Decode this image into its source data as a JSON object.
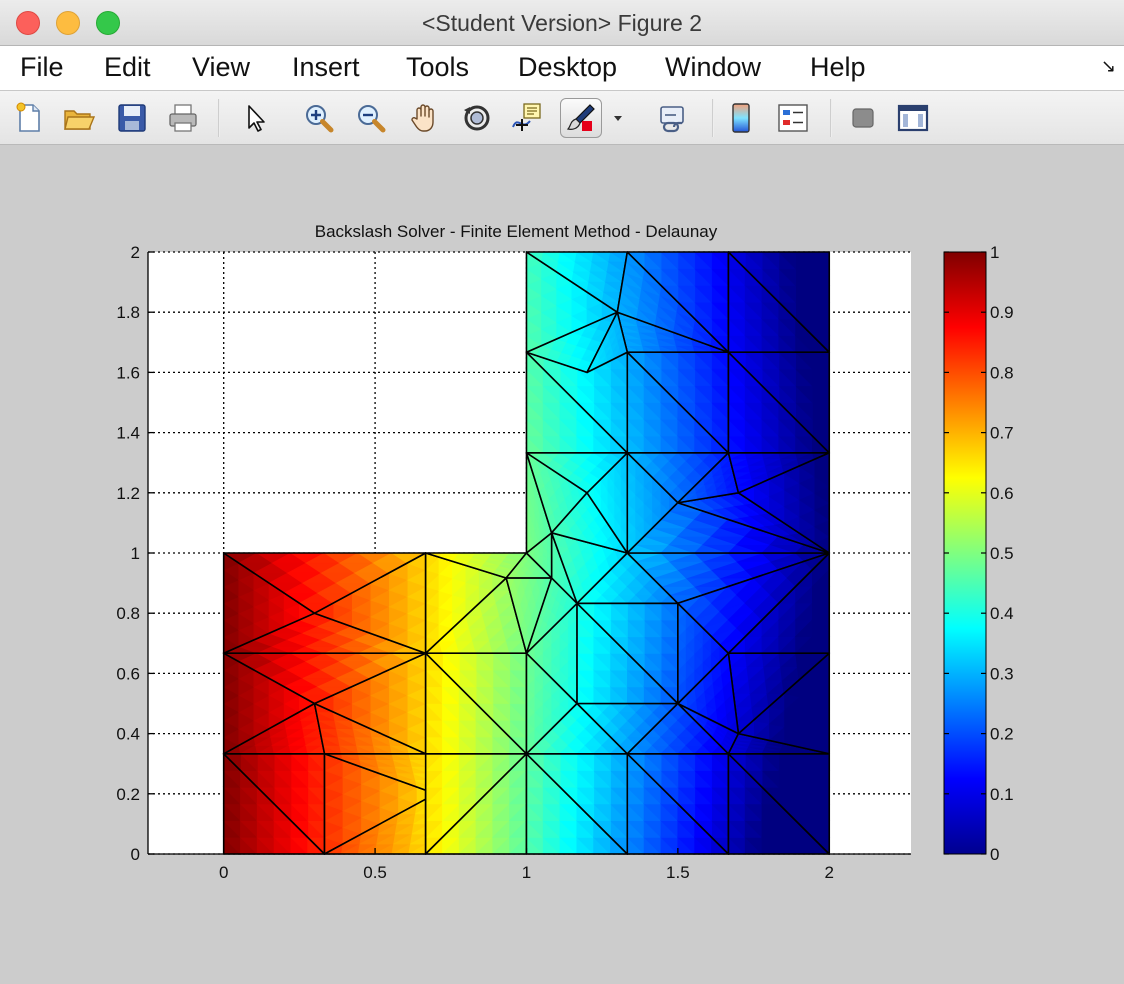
{
  "window": {
    "title": "<Student Version> Figure 2"
  },
  "menu": {
    "items": [
      "File",
      "Edit",
      "View",
      "Insert",
      "Tools",
      "Desktop",
      "Window",
      "Help"
    ]
  },
  "toolbar": {
    "icons": [
      "new-figure-icon",
      "open-file-icon",
      "save-icon",
      "print-icon",
      "edit-plot-arrow-icon",
      "zoom-in-icon",
      "zoom-out-icon",
      "pan-hand-icon",
      "rotate-3d-icon",
      "data-cursor-icon",
      "brush-icon",
      "brush-dropdown-icon",
      "link-plot-icon",
      "colorbar-icon",
      "legend-icon",
      "hide-plot-tools-icon",
      "show-plot-tools-icon"
    ]
  },
  "colors": {
    "axes_background": "#ffffff",
    "figure_background": "#cccccc",
    "mesh_edges": "#000000",
    "colormap": "jet"
  },
  "chart_data": {
    "type": "heatmap",
    "title": "Backslash Solver - Finite Element Method - Delaunay",
    "xlabel": "",
    "ylabel": "",
    "xlim": [
      -0.25,
      2.27
    ],
    "ylim": [
      0,
      2
    ],
    "xticks": [
      "0",
      "0.5",
      "1",
      "1.5",
      "2"
    ],
    "yticks": [
      "0",
      "0.2",
      "0.4",
      "0.6",
      "0.8",
      "1",
      "1.2",
      "1.4",
      "1.6",
      "1.8",
      "2"
    ],
    "grid": true,
    "domain": "L-shaped: [0,2]x[0,1] union [1,2]x[1,2]",
    "colorbar": {
      "location": "right",
      "range": [
        0,
        1
      ],
      "ticks": [
        "0",
        "0.1",
        "0.2",
        "0.3",
        "0.4",
        "0.5",
        "0.6",
        "0.7",
        "0.8",
        "0.9",
        "1"
      ]
    },
    "mesh_nodes": [
      [
        0,
        0
      ],
      [
        0.333,
        0
      ],
      [
        0.667,
        0
      ],
      [
        1,
        0
      ],
      [
        1.333,
        0
      ],
      [
        1.667,
        0
      ],
      [
        2,
        0
      ],
      [
        0,
        0.333
      ],
      [
        0.333,
        0.333
      ],
      [
        0.667,
        0.333
      ],
      [
        1,
        0.333
      ],
      [
        1.333,
        0.333
      ],
      [
        1.667,
        0.333
      ],
      [
        2,
        0.333
      ],
      [
        0,
        0.667
      ],
      [
        0.667,
        0.667
      ],
      [
        1,
        0.667
      ],
      [
        1.333,
        0.667
      ],
      [
        1.667,
        0.667
      ],
      [
        2,
        0.667
      ],
      [
        0,
        1
      ],
      [
        0.667,
        1
      ],
      [
        1,
        1
      ],
      [
        2,
        1
      ],
      [
        1,
        1.333
      ],
      [
        1.333,
        1.333
      ],
      [
        1.667,
        1.333
      ],
      [
        2,
        1.333
      ],
      [
        1,
        1.667
      ],
      [
        1.333,
        1.667
      ],
      [
        1.667,
        1.667
      ],
      [
        2,
        1.667
      ],
      [
        1,
        2
      ],
      [
        1.333,
        2
      ],
      [
        1.667,
        2
      ],
      [
        2,
        2
      ],
      [
        0.7,
        0.2
      ],
      [
        0.3,
        0.5
      ],
      [
        0.3,
        0.8
      ],
      [
        1.167,
        0.5
      ],
      [
        1.5,
        0.5
      ],
      [
        1.7,
        0.4
      ],
      [
        1.167,
        0.833
      ],
      [
        1.5,
        0.833
      ],
      [
        0.933,
        0.917
      ],
      [
        1.083,
        0.917
      ],
      [
        1.083,
        1.067
      ],
      [
        1.333,
        1
      ],
      [
        1.5,
        1.167
      ],
      [
        1.7,
        1.2
      ],
      [
        1.2,
        1.2
      ],
      [
        1.2,
        1.6
      ],
      [
        1.3,
        1.8
      ]
    ],
    "mesh_triangles": [
      [
        0,
        1,
        7
      ],
      [
        1,
        8,
        7
      ],
      [
        1,
        36,
        8
      ],
      [
        1,
        2,
        36
      ],
      [
        2,
        9,
        36
      ],
      [
        8,
        36,
        9
      ],
      [
        2,
        10,
        9
      ],
      [
        2,
        3,
        10
      ],
      [
        3,
        4,
        10
      ],
      [
        4,
        11,
        10
      ],
      [
        4,
        5,
        11
      ],
      [
        5,
        12,
        11
      ],
      [
        5,
        6,
        12
      ],
      [
        6,
        13,
        12
      ],
      [
        7,
        8,
        37
      ],
      [
        8,
        9,
        37
      ],
      [
        9,
        15,
        37
      ],
      [
        7,
        37,
        14
      ],
      [
        14,
        37,
        15
      ],
      [
        9,
        10,
        15
      ],
      [
        10,
        16,
        15
      ],
      [
        10,
        39,
        16
      ],
      [
        10,
        11,
        39
      ],
      [
        11,
        40,
        39
      ],
      [
        11,
        12,
        40
      ],
      [
        12,
        41,
        40
      ],
      [
        12,
        13,
        41
      ],
      [
        13,
        19,
        41
      ],
      [
        41,
        19,
        18
      ],
      [
        40,
        41,
        18
      ],
      [
        14,
        15,
        38
      ],
      [
        15,
        21,
        38
      ],
      [
        14,
        38,
        20
      ],
      [
        20,
        38,
        21
      ],
      [
        15,
        16,
        44
      ],
      [
        15,
        44,
        21
      ],
      [
        16,
        45,
        44
      ],
      [
        21,
        44,
        22
      ],
      [
        22,
        44,
        45
      ],
      [
        16,
        39,
        42
      ],
      [
        16,
        42,
        45
      ],
      [
        39,
        40,
        42
      ],
      [
        40,
        43,
        42
      ],
      [
        40,
        18,
        43
      ],
      [
        18,
        19,
        23
      ],
      [
        18,
        23,
        43
      ],
      [
        45,
        42,
        46
      ],
      [
        22,
        45,
        46
      ],
      [
        42,
        47,
        46
      ],
      [
        42,
        43,
        47
      ],
      [
        43,
        23,
        47
      ],
      [
        43,
        18,
        23
      ],
      [
        22,
        46,
        24
      ],
      [
        24,
        46,
        50
      ],
      [
        46,
        47,
        50
      ],
      [
        47,
        25,
        50
      ],
      [
        24,
        50,
        25
      ],
      [
        47,
        48,
        25
      ],
      [
        47,
        23,
        48
      ],
      [
        23,
        49,
        48
      ],
      [
        23,
        27,
        49
      ],
      [
        25,
        48,
        26
      ],
      [
        48,
        49,
        26
      ],
      [
        26,
        49,
        27
      ],
      [
        24,
        25,
        28
      ],
      [
        25,
        29,
        28
      ],
      [
        25,
        26,
        29
      ],
      [
        26,
        30,
        29
      ],
      [
        26,
        27,
        30
      ],
      [
        27,
        31,
        30
      ],
      [
        28,
        29,
        51
      ],
      [
        28,
        51,
        52
      ],
      [
        28,
        52,
        32
      ],
      [
        32,
        52,
        33
      ],
      [
        29,
        30,
        52
      ],
      [
        29,
        52,
        51
      ],
      [
        30,
        33,
        52
      ],
      [
        30,
        34,
        33
      ],
      [
        30,
        31,
        34
      ],
      [
        31,
        35,
        34
      ]
    ]
  }
}
